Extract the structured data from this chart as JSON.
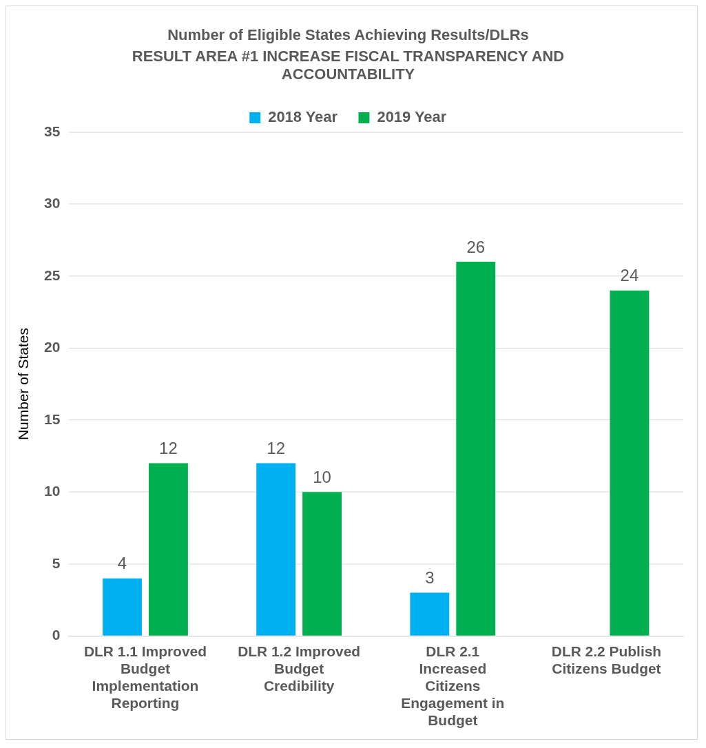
{
  "chart_data": {
    "type": "bar",
    "title": "Number of Eligible States Achieving Results/DLRs",
    "subtitle": "RESULT AREA #1 INCREASE FISCAL TRANSPARENCY AND ACCOUNTABILITY",
    "ylabel": "Number of States",
    "categories": [
      "DLR 1.1 Improved Budget Implementation Reporting",
      "DLR 1.2 Improved Budget Credibility",
      "DLR 2.1 Increased Citizens Engagement in Budget",
      "DLR 2.2 Publish Citizens Budget"
    ],
    "series": [
      {
        "name": "2018 Year",
        "color": "#00b0f0",
        "values": [
          4,
          12,
          3,
          null
        ]
      },
      {
        "name": "2019 Year",
        "color": "#00b050",
        "values": [
          12,
          10,
          26,
          24
        ]
      }
    ],
    "ylim": [
      0,
      35
    ],
    "yticks": [
      0,
      5,
      10,
      15,
      20,
      25,
      30,
      35
    ],
    "grid": "y",
    "legend": "top",
    "data_labels": true
  }
}
